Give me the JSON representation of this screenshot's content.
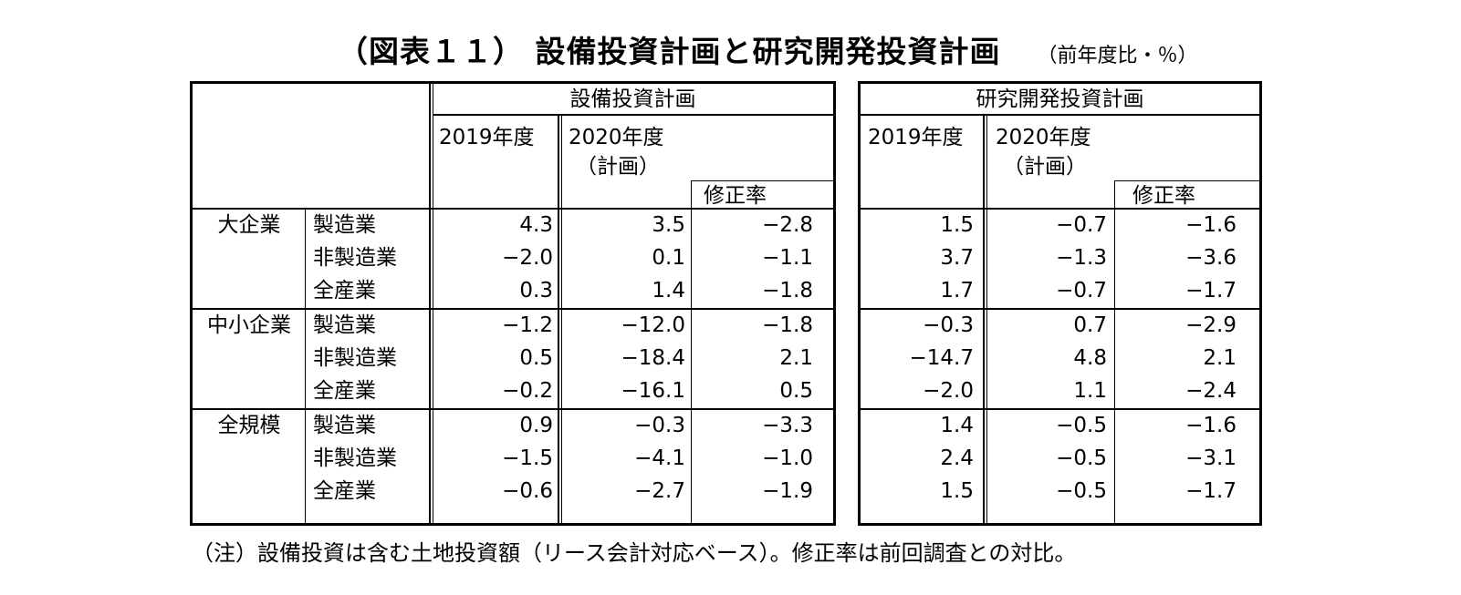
{
  "title": "（図表１１） 設備投資計画と研究開発投資計画",
  "unit": "（前年度比・％）",
  "note": "（注）設備投資は含む土地投資額（リース会計対応ベース）。修正率は前回調査との対比。",
  "chart_data": {
    "type": "table",
    "groups": [
      {
        "name": "設備投資計画",
        "columns": [
          "2019年度",
          "2020年度（計画）",
          "修正率"
        ]
      },
      {
        "name": "研究開発投資計画",
        "columns": [
          "2019年度",
          "2020年度（計画）",
          "修正率"
        ]
      }
    ],
    "header": {
      "capex_group": "設備投資計画",
      "rnd_group": "研究開発投資計画",
      "fy2019": "2019年度",
      "fy2020": "2020年度",
      "plan": "（計画）",
      "revision": "修正率"
    },
    "row_groups": [
      {
        "size": "大企業",
        "rows": [
          {
            "industry": "製造業",
            "capex_2019": "4.3",
            "capex_2020": "3.5",
            "capex_rev": "−2.8",
            "rnd_2019": "1.5",
            "rnd_2020": "−0.7",
            "rnd_rev": "−1.6"
          },
          {
            "industry": "非製造業",
            "capex_2019": "−2.0",
            "capex_2020": "0.1",
            "capex_rev": "−1.1",
            "rnd_2019": "3.7",
            "rnd_2020": "−1.3",
            "rnd_rev": "−3.6"
          },
          {
            "industry": "全産業",
            "capex_2019": "0.3",
            "capex_2020": "1.4",
            "capex_rev": "−1.8",
            "rnd_2019": "1.7",
            "rnd_2020": "−0.7",
            "rnd_rev": "−1.7"
          }
        ]
      },
      {
        "size": "中小企業",
        "rows": [
          {
            "industry": "製造業",
            "capex_2019": "−1.2",
            "capex_2020": "−12.0",
            "capex_rev": "−1.8",
            "rnd_2019": "−0.3",
            "rnd_2020": "0.7",
            "rnd_rev": "−2.9"
          },
          {
            "industry": "非製造業",
            "capex_2019": "0.5",
            "capex_2020": "−18.4",
            "capex_rev": "2.1",
            "rnd_2019": "−14.7",
            "rnd_2020": "4.8",
            "rnd_rev": "2.1"
          },
          {
            "industry": "全産業",
            "capex_2019": "−0.2",
            "capex_2020": "−16.1",
            "capex_rev": "0.5",
            "rnd_2019": "−2.0",
            "rnd_2020": "1.1",
            "rnd_rev": "−2.4"
          }
        ]
      },
      {
        "size": "全規模",
        "rows": [
          {
            "industry": "製造業",
            "capex_2019": "0.9",
            "capex_2020": "−0.3",
            "capex_rev": "−3.3",
            "rnd_2019": "1.4",
            "rnd_2020": "−0.5",
            "rnd_rev": "−1.6"
          },
          {
            "industry": "非製造業",
            "capex_2019": "−1.5",
            "capex_2020": "−4.1",
            "capex_rev": "−1.0",
            "rnd_2019": "2.4",
            "rnd_2020": "−0.5",
            "rnd_rev": "−3.1"
          },
          {
            "industry": "全産業",
            "capex_2019": "−0.6",
            "capex_2020": "−2.7",
            "capex_rev": "−1.9",
            "rnd_2019": "1.5",
            "rnd_2020": "−0.5",
            "rnd_rev": "−1.7"
          }
        ]
      }
    ]
  }
}
